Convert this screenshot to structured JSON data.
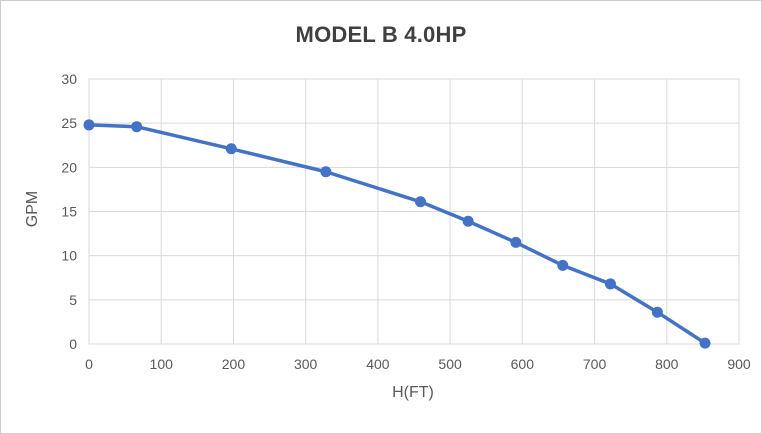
{
  "chart_data": {
    "type": "line",
    "title": "MODEL B 4.0HP",
    "xlabel": "H(FT)",
    "ylabel": "GPM",
    "x": [
      0,
      66,
      197,
      328,
      459,
      525,
      591,
      656,
      722,
      787,
      853
    ],
    "y": [
      24.8,
      24.6,
      22.1,
      19.5,
      16.1,
      13.9,
      11.5,
      8.9,
      6.8,
      3.6,
      0.1
    ],
    "xlim": [
      0,
      900
    ],
    "ylim": [
      0,
      30
    ],
    "xticks": [
      0,
      100,
      200,
      300,
      400,
      500,
      600,
      700,
      800,
      900
    ],
    "yticks": [
      0,
      5,
      10,
      15,
      20,
      25,
      30
    ],
    "grid": true,
    "legend": false,
    "marker": "circle",
    "colors": {
      "series": "#4472C4",
      "gridline": "#D9D9D9",
      "plot_border": "#D9D9D9",
      "tick_label": "#595959",
      "axis_title": "#595959",
      "title": "#404040",
      "background": "#FFFFFF",
      "frame_border": "#CDCDCD"
    }
  }
}
